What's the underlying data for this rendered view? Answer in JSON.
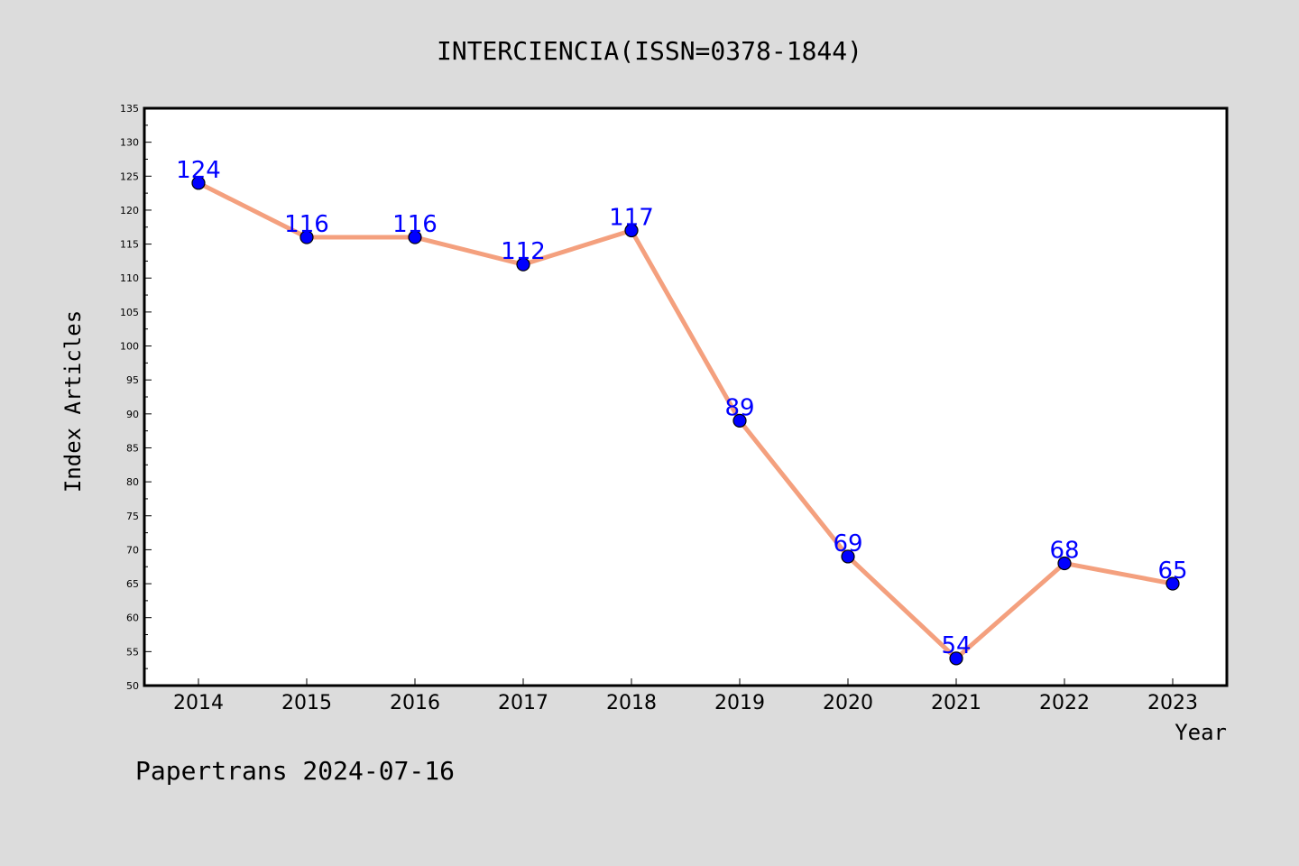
{
  "chart_data": {
    "type": "line",
    "title": "INTERCIENCIA(ISSN=0378-1844)",
    "xlabel": "Year",
    "ylabel": "Index Articles",
    "categories": [
      "2014",
      "2015",
      "2016",
      "2017",
      "2018",
      "2019",
      "2020",
      "2021",
      "2022",
      "2023"
    ],
    "series": [
      {
        "values": [
          124,
          116,
          116,
          112,
          117,
          89,
          69,
          54,
          68,
          65
        ]
      }
    ],
    "ylim": [
      50,
      135
    ],
    "yticks": [
      50,
      55,
      60,
      65,
      70,
      75,
      80,
      85,
      90,
      95,
      100,
      105,
      110,
      115,
      120,
      125,
      130,
      135
    ],
    "grid": false,
    "legend": "none",
    "colors": {
      "line": "#f4a07e",
      "marker": "#0000ff",
      "data_label": "#0000ff",
      "background": "#dcdcdc",
      "plot_background": "#ffffff"
    }
  },
  "footer": {
    "text": "Papertrans 2024-07-16"
  }
}
